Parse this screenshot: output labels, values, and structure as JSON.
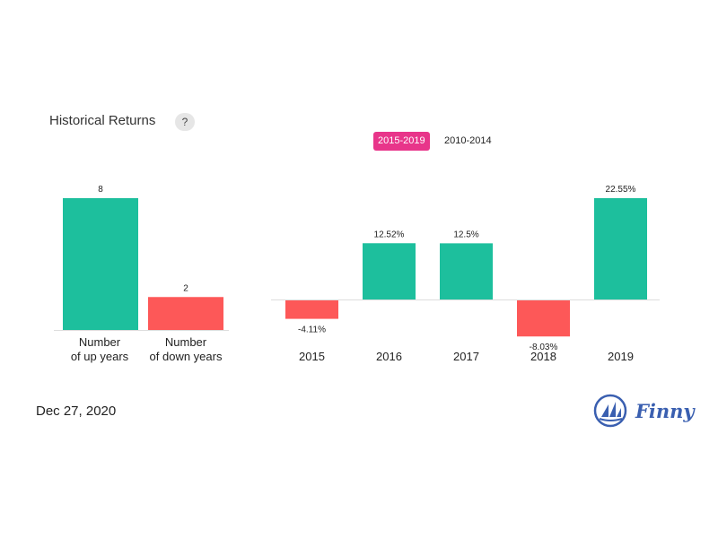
{
  "header": {
    "title": "Historical Returns",
    "help_label": "?"
  },
  "tabs": [
    {
      "label": "2015-2019",
      "active": true
    },
    {
      "label": "2010-2014",
      "active": false
    }
  ],
  "footer": {
    "date": "Dec 27, 2020",
    "brand": "Finny"
  },
  "colors": {
    "positive": "#1dbf9d",
    "negative": "#fd5858",
    "accent": "#e8358a",
    "brand": "#3a5fb0"
  },
  "chart_data": [
    {
      "type": "bar",
      "title": "",
      "categories": [
        [
          "Number",
          "of up years"
        ],
        [
          "Number",
          "of down years"
        ]
      ],
      "values": [
        8,
        2
      ],
      "value_labels": [
        "8",
        "2"
      ],
      "ylim": [
        0,
        8
      ],
      "grid": false
    },
    {
      "type": "bar",
      "title": "",
      "categories": [
        "2015",
        "2016",
        "2017",
        "2018",
        "2019"
      ],
      "values": [
        -4.11,
        12.52,
        12.5,
        -8.03,
        22.55
      ],
      "value_labels": [
        "-4.11%",
        "12.52%",
        "12.5%",
        "-8.03%",
        "22.55%"
      ],
      "ylim": [
        -8.03,
        22.55
      ],
      "unit": "%",
      "grid": false
    }
  ]
}
